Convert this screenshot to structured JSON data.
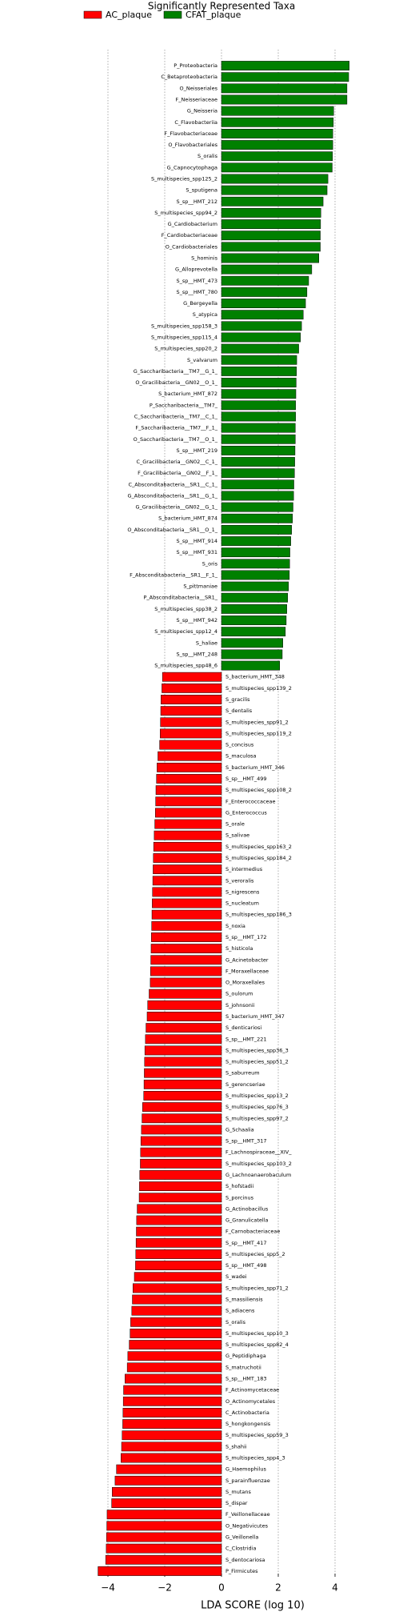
{
  "chart_data": {
    "type": "hbar",
    "title": "Significantly Represented Taxa",
    "xlabel": "LDA SCORE (log 10)",
    "categories": [
      "P_Proteobacteria",
      "C_Betaproteobacteria",
      "O_Neisseriales",
      "F_Neisseriaceae",
      "G_Neisseria",
      "C_Flavobacteriia",
      "F_Flavobacteriaceae",
      "O_Flavobacteriales",
      "S_oralis",
      "G_Capnocytophaga",
      "S_multispecies_spp125_2",
      "S_sputigena",
      "S_sp__HMT_212",
      "S_multispecies_spp94_2",
      "G_Cardiobacterium",
      "F_Cardiobacteriaceae",
      "O_Cardiobacteriales",
      "S_hominis",
      "G_Alloprevotella",
      "S_sp__HMT_473",
      "S_sp__HMT_780",
      "G_Bergeyella",
      "S_atypica",
      "S_multispecies_spp158_3",
      "S_multispecies_spp115_4",
      "S_multispecies_spp20_2",
      "S_valvarum",
      "G_Saccharibacteria__TM7__G_1_",
      "O_Gracilibacteria__GN02__O_1_",
      "S_bacterium_HMT_872",
      "P_Saccharibacteria__TM7_",
      "C_Saccharibacteria__TM7__C_1_",
      "F_Saccharibacteria__TM7__F_1_",
      "O_Saccharibacteria__TM7__O_1_",
      "S_sp__HMT_219",
      "C_Gracilibacteria__GN02__C_1_",
      "F_Gracilibacteria__GN02__F_1_",
      "C_Absconditabacteria__SR1__C_1_",
      "G_Absconditabacteria__SR1__G_1_",
      "G_Gracilibacteria__GN02__G_1_",
      "S_bacterium_HMT_874",
      "O_Absconditabacteria__SR1__O_1_",
      "S_sp__HMT_914",
      "S_sp__HMT_931",
      "S_oris",
      "F_Absconditabacteria__SR1__F_1_",
      "S_pittmaniae",
      "P_Absconditabacteria__SR1_",
      "S_multispecies_spp38_2",
      "S_sp__HMT_942",
      "S_multispecies_spp12_4",
      "S_haliae",
      "S_sp__HMT_248",
      "S_multispecies_spp48_6",
      "S_bacterium_HMT_348",
      "S_multispecies_spp139_2",
      "S_gracilis",
      "S_dentalis",
      "S_multispecies_spp91_2",
      "S_multispecies_spp119_2",
      "S_concisus",
      "S_maculosa",
      "S_bacterium_HMT_346",
      "S_sp__HMT_499",
      "S_multispecies_spp108_2",
      "F_Enterococcaceae",
      "G_Enterococcus",
      "S_orale",
      "S_salivae",
      "S_multispecies_spp163_2",
      "S_multispecies_spp184_2",
      "S_intermedius",
      "S_veroralis",
      "S_nigrescens",
      "S_nucleatum",
      "S_multispecies_spp186_3",
      "S_noxia",
      "S_sp__HMT_172",
      "S_histicola",
      "G_Acinetobacter",
      "F_Moraxellaceae",
      "O_Moraxellales",
      "S_oulorum",
      "S_johnsonii",
      "S_bacterium_HMT_347",
      "S_denticariosi",
      "S_sp__HMT_221",
      "S_multispecies_spp36_3",
      "S_multispecies_spp51_2",
      "S_saburreum",
      "S_gerencseriae",
      "S_multispecies_spp13_2",
      "S_multispecies_spp76_3",
      "S_multispecies_spp97_2",
      "G_Schaalia",
      "S_sp__HMT_317",
      "F_Lachnospiraceae__XIV_",
      "S_multispecies_spp103_2",
      "G_Lachnoanaerobaculum",
      "S_hofstadii",
      "S_porcinus",
      "G_Actinobacillus",
      "G_Granulicatella",
      "F_Carnobacteriaceae",
      "S_sp__HMT_417",
      "S_multispecies_spp5_2",
      "S_sp__HMT_498",
      "S_wadei",
      "S_multispecies_spp71_2",
      "S_massiliensis",
      "S_adiacens",
      "S_oralis",
      "S_multispecies_spp10_3",
      "S_multispecies_spp82_4",
      "G_Peptidiphaga",
      "S_matruchotii",
      "S_sp__HMT_183",
      "F_Actinomycetaceae",
      "O_Actinomycetales",
      "C_Actinobacteria",
      "S_hongkongensis",
      "S_multispecies_spp59_3",
      "S_shahii",
      "S_multispecies_spp4_3",
      "G_Haemophilus",
      "S_parainfluenzae",
      "S_mutans",
      "S_dispar",
      "F_Veillonellaceae",
      "O_Negativicutes",
      "G_Veillonella",
      "C_Clostridia",
      "S_dentocariosa",
      "P_Firmicutes"
    ],
    "series": [
      {
        "name": "AC_plaque",
        "color": "#ff0000",
        "values": [
          null,
          null,
          null,
          null,
          null,
          null,
          null,
          null,
          null,
          null,
          null,
          null,
          null,
          null,
          null,
          null,
          null,
          null,
          null,
          null,
          null,
          null,
          null,
          null,
          null,
          null,
          null,
          null,
          null,
          null,
          null,
          null,
          null,
          null,
          null,
          null,
          null,
          null,
          null,
          null,
          null,
          null,
          null,
          null,
          null,
          null,
          null,
          null,
          null,
          null,
          null,
          null,
          null,
          null,
          -2.08,
          -2.1,
          -2.13,
          -2.14,
          -2.15,
          -2.16,
          -2.18,
          -2.24,
          -2.27,
          -2.29,
          -2.31,
          -2.32,
          -2.33,
          -2.35,
          -2.37,
          -2.39,
          -2.4,
          -2.41,
          -2.42,
          -2.43,
          -2.44,
          -2.45,
          -2.46,
          -2.47,
          -2.48,
          -2.49,
          -2.5,
          -2.51,
          -2.55,
          -2.6,
          -2.62,
          -2.66,
          -2.68,
          -2.7,
          -2.71,
          -2.72,
          -2.73,
          -2.74,
          -2.78,
          -2.8,
          -2.82,
          -2.84,
          -2.85,
          -2.86,
          -2.88,
          -2.89,
          -2.9,
          -2.97,
          -2.99,
          -3.0,
          -3.01,
          -3.02,
          -3.03,
          -3.07,
          -3.12,
          -3.14,
          -3.16,
          -3.2,
          -3.22,
          -3.25,
          -3.3,
          -3.32,
          -3.4,
          -3.45,
          -3.46,
          -3.47,
          -3.48,
          -3.5,
          -3.52,
          -3.54,
          -3.7,
          -3.75,
          -3.85,
          -3.87,
          -4.03,
          -4.04,
          -4.05,
          -4.06,
          -4.08,
          -4.35
        ]
      },
      {
        "name": "CFAT_plaque",
        "color": "#008000",
        "values": [
          4.5,
          4.48,
          4.42,
          4.42,
          3.95,
          3.94,
          3.92,
          3.92,
          3.91,
          3.9,
          3.75,
          3.72,
          3.58,
          3.5,
          3.49,
          3.48,
          3.48,
          3.43,
          3.18,
          3.07,
          3.01,
          2.96,
          2.88,
          2.82,
          2.78,
          2.72,
          2.65,
          2.64,
          2.63,
          2.62,
          2.61,
          2.61,
          2.6,
          2.6,
          2.59,
          2.58,
          2.57,
          2.55,
          2.54,
          2.52,
          2.5,
          2.47,
          2.44,
          2.41,
          2.4,
          2.39,
          2.36,
          2.33,
          2.3,
          2.28,
          2.25,
          2.16,
          2.14,
          2.05,
          null,
          null,
          null,
          null,
          null,
          null,
          null,
          null,
          null,
          null,
          null,
          null,
          null,
          null,
          null,
          null,
          null,
          null,
          null,
          null,
          null,
          null,
          null,
          null,
          null,
          null,
          null,
          null,
          null,
          null,
          null,
          null,
          null,
          null,
          null,
          null,
          null,
          null,
          null,
          null,
          null,
          null,
          null,
          null,
          null,
          null,
          null,
          null,
          null,
          null,
          null,
          null,
          null,
          null,
          null,
          null,
          null,
          null,
          null,
          null,
          null,
          null,
          null,
          null,
          null,
          null,
          null,
          null,
          null,
          null,
          null,
          null,
          null,
          null,
          null,
          null,
          null,
          null,
          null,
          null
        ]
      }
    ],
    "xlim": [
      -4.5,
      4.7
    ],
    "xticks": [
      {
        "value": -4,
        "label": "−4"
      },
      {
        "value": -2,
        "label": "−2"
      },
      0,
      2,
      4
    ],
    "grid": true
  }
}
